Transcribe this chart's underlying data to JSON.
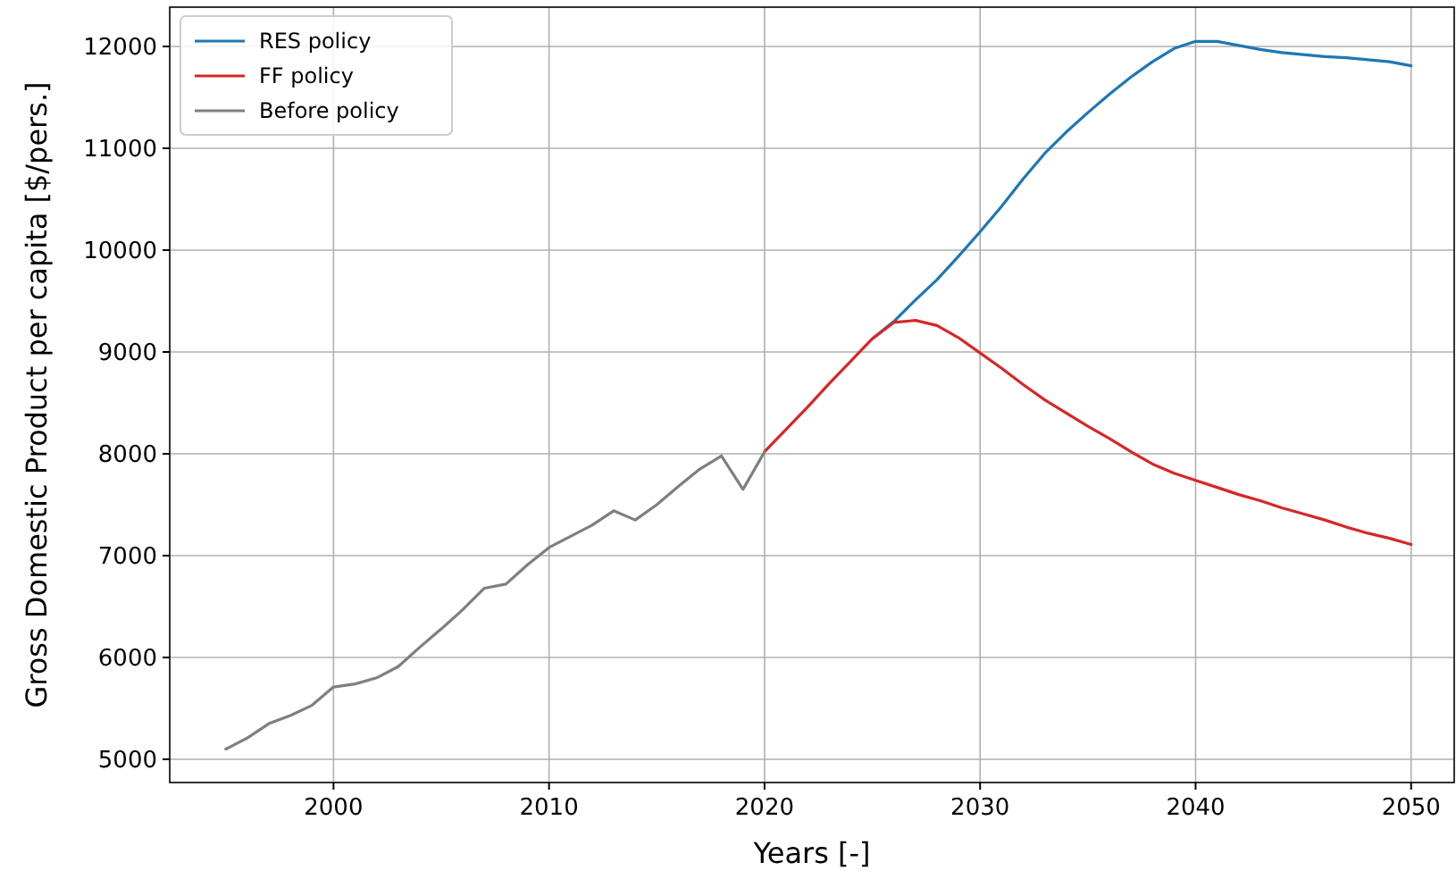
{
  "chart_data": {
    "type": "line",
    "xlabel": "Years [-]",
    "ylabel": "Gross Domestic Product per capita [$/pers.]",
    "xlim": [
      1992.4,
      2052
    ],
    "ylim": [
      4772,
      12386
    ],
    "xticks": [
      2000,
      2010,
      2020,
      2030,
      2040,
      2050
    ],
    "yticks": [
      5000,
      6000,
      7000,
      8000,
      9000,
      10000,
      11000,
      12000
    ],
    "grid": true,
    "legend": "top left",
    "line_style": "solid",
    "marker": "none",
    "series": [
      {
        "name": "RES policy",
        "color": "#1f77b4",
        "x": [
          2025,
          2026,
          2027,
          2028,
          2029,
          2030,
          2031,
          2032,
          2033,
          2034,
          2035,
          2036,
          2037,
          2038,
          2039,
          2040,
          2041,
          2042,
          2043,
          2044,
          2045,
          2046,
          2047,
          2048,
          2049,
          2050
        ],
        "values": [
          9130,
          9300,
          9510,
          9710,
          9940,
          10180,
          10430,
          10700,
          10950,
          11160,
          11350,
          11530,
          11700,
          11850,
          11980,
          12050,
          12050,
          12010,
          11970,
          11940,
          11920,
          11900,
          11890,
          11870,
          11850,
          11810
        ]
      },
      {
        "name": "FF policy",
        "color": "#d62728",
        "x": [
          2020,
          2021,
          2022,
          2023,
          2024,
          2025,
          2026,
          2027,
          2028,
          2029,
          2030,
          2031,
          2032,
          2033,
          2034,
          2035,
          2036,
          2037,
          2038,
          2039,
          2040,
          2041,
          2042,
          2043,
          2044,
          2045,
          2046,
          2047,
          2048,
          2049,
          2050
        ],
        "values": [
          8020,
          8240,
          8460,
          8690,
          8910,
          9130,
          9290,
          9310,
          9260,
          9140,
          8990,
          8840,
          8680,
          8530,
          8400,
          8270,
          8150,
          8020,
          7900,
          7810,
          7740,
          7670,
          7600,
          7540,
          7470,
          7410,
          7350,
          7280,
          7220,
          7170,
          7110
        ]
      },
      {
        "name": "Before policy",
        "color": "#7f7f7f",
        "x": [
          1995,
          1996,
          1997,
          1998,
          1999,
          2000,
          2001,
          2002,
          2003,
          2004,
          2005,
          2006,
          2007,
          2008,
          2009,
          2010,
          2011,
          2012,
          2013,
          2014,
          2015,
          2016,
          2017,
          2018,
          2019,
          2020
        ],
        "values": [
          5100,
          5210,
          5350,
          5430,
          5530,
          5710,
          5740,
          5800,
          5910,
          6100,
          6280,
          6470,
          6680,
          6720,
          6910,
          7080,
          7190,
          7300,
          7440,
          7350,
          7500,
          7680,
          7850,
          7980,
          7650,
          8020
        ]
      }
    ]
  }
}
